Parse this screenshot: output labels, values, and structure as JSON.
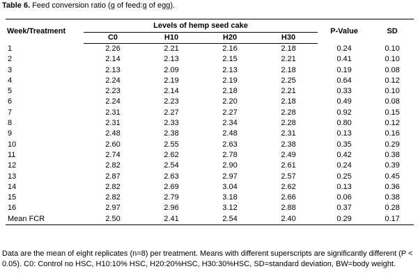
{
  "caption": {
    "label": "Table 6.",
    "text": " Feed conversion ratio (g of feed:g of egg)."
  },
  "table": {
    "header": {
      "week_treatment": "Week/Treatment",
      "group_label": "Levels of hemp seed cake",
      "p_value": "P-Value",
      "sd": "SD",
      "levels": [
        "C0",
        "H10",
        "H20",
        "H30"
      ]
    },
    "rows": [
      {
        "week": "1",
        "c0": "2.26",
        "h10": "2.21",
        "h20": "2.16",
        "h30": "2.18",
        "p": "0.24",
        "sd": "0.10"
      },
      {
        "week": "2",
        "c0": "2.14",
        "h10": "2.13",
        "h20": "2.15",
        "h30": "2.21",
        "p": "0.41",
        "sd": "0.10"
      },
      {
        "week": "3",
        "c0": "2.13",
        "h10": "2.09",
        "h20": "2.13",
        "h30": "2.18",
        "p": "0.19",
        "sd": "0.08"
      },
      {
        "week": "4",
        "c0": "2.24",
        "h10": "2.19",
        "h20": "2.19",
        "h30": "2.25",
        "p": "0.64",
        "sd": "0.12"
      },
      {
        "week": "5",
        "c0": "2.23",
        "h10": "2.14",
        "h20": "2.18",
        "h30": "2.21",
        "p": "0.33",
        "sd": "0.10"
      },
      {
        "week": "6",
        "c0": "2.24",
        "h10": "2.23",
        "h20": "2.20",
        "h30": "2.18",
        "p": "0.49",
        "sd": "0.08"
      },
      {
        "week": "7",
        "c0": "2.31",
        "h10": "2.27",
        "h20": "2.27",
        "h30": "2.28",
        "p": "0.92",
        "sd": "0.15"
      },
      {
        "week": "8",
        "c0": "2.31",
        "h10": "2.33",
        "h20": "2.34",
        "h30": "2.28",
        "p": "0.80",
        "sd": "0.12"
      },
      {
        "week": "9",
        "c0": "2.48",
        "h10": "2.38",
        "h20": "2.48",
        "h30": "2.31",
        "p": "0.13",
        "sd": "0.16"
      },
      {
        "week": "10",
        "c0": "2.60",
        "h10": "2.55",
        "h20": "2.63",
        "h30": "2.38",
        "p": "0.35",
        "sd": "0.29"
      },
      {
        "week": "11",
        "c0": "2.74",
        "h10": "2.62",
        "h20": "2.78",
        "h30": "2.49",
        "p": "0.42",
        "sd": "0.38"
      },
      {
        "week": "12",
        "c0": "2.82",
        "h10": "2.54",
        "h20": "2.90",
        "h30": "2.61",
        "p": "0.24",
        "sd": "0.39"
      },
      {
        "week": "13",
        "c0": "2.87",
        "h10": "2.63",
        "h20": "2.97",
        "h30": "2.57",
        "p": "0.25",
        "sd": "0.45"
      },
      {
        "week": "14",
        "c0": "2.82",
        "h10": "2.69",
        "h20": "3.04",
        "h30": "2.62",
        "p": "0.13",
        "sd": "0.36"
      },
      {
        "week": "15",
        "c0": "2.82",
        "h10": "2.79",
        "h20": "3.18",
        "h30": "2.66",
        "p": "0.06",
        "sd": "0.38"
      },
      {
        "week": "16",
        "c0": "2.97",
        "h10": "2.96",
        "h20": "3.12",
        "h30": "2.88",
        "p": "0.37",
        "sd": "0.28"
      },
      {
        "week": "Mean FCR",
        "c0": "2.50",
        "h10": "2.41",
        "h20": "2.54",
        "h30": "2.40",
        "p": "0.29",
        "sd": "0.17"
      }
    ]
  },
  "note": "Data are the mean of eight replicates (n=8) per treatment. Means with different superscripts are significantly different (P < 0.05). C0: Control no HSC, H10:10% HSC, H20:20%HSC, H30:30%HSC, SD=standard deviation, BW=body weight."
}
